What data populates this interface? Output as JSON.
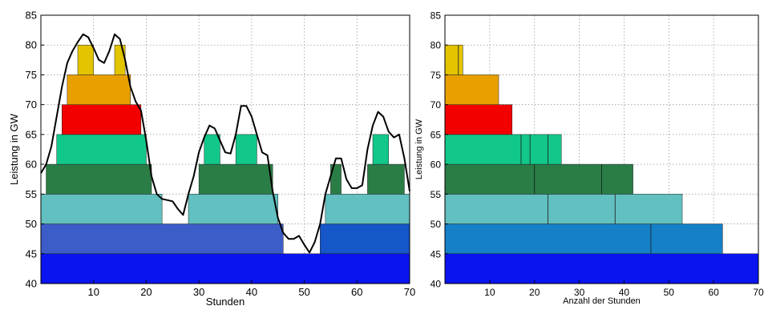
{
  "chart_data": [
    {
      "type": "area",
      "xlabel": "Stunden",
      "ylabel": "Leistung in GW",
      "xlim": [
        0,
        70
      ],
      "ylim": [
        40,
        85
      ],
      "xticks": [
        "10",
        "20",
        "30",
        "40",
        "50",
        "60",
        "70"
      ],
      "yticks": [
        "40",
        "45",
        "50",
        "55",
        "60",
        "65",
        "70",
        "75",
        "80",
        "85"
      ],
      "grid": true,
      "bands": [
        {
          "x0": 0,
          "x1": 70,
          "y0": 40,
          "y1": 45,
          "color": "#0a14f0"
        },
        {
          "x0": 0,
          "x1": 46,
          "y0": 45,
          "y1": 50,
          "color": "#3c5cc8"
        },
        {
          "x0": 53,
          "x1": 70,
          "y0": 45,
          "y1": 50,
          "color": "#1556c8"
        },
        {
          "x0": 0,
          "x1": 23,
          "y0": 50,
          "y1": 55,
          "color": "#62c0c0"
        },
        {
          "x0": 28,
          "x1": 45,
          "y0": 50,
          "y1": 55,
          "color": "#62c0c0"
        },
        {
          "x0": 54,
          "x1": 70,
          "y0": 50,
          "y1": 55,
          "color": "#62c0c0"
        },
        {
          "x0": 1,
          "x1": 21,
          "y0": 55,
          "y1": 60,
          "color": "#2a7d45"
        },
        {
          "x0": 30,
          "x1": 44,
          "y0": 55,
          "y1": 60,
          "color": "#2a7d45"
        },
        {
          "x0": 55,
          "x1": 57,
          "y0": 55,
          "y1": 60,
          "color": "#2a7d45"
        },
        {
          "x0": 62,
          "x1": 69,
          "y0": 55,
          "y1": 60,
          "color": "#2a7d45"
        },
        {
          "x0": 3,
          "x1": 20,
          "y0": 60,
          "y1": 65,
          "color": "#12c78a"
        },
        {
          "x0": 31,
          "x1": 34,
          "y0": 60,
          "y1": 65,
          "color": "#12c78a"
        },
        {
          "x0": 37,
          "x1": 41,
          "y0": 60,
          "y1": 65,
          "color": "#12c78a"
        },
        {
          "x0": 63,
          "x1": 66,
          "y0": 60,
          "y1": 65,
          "color": "#12c78a"
        },
        {
          "x0": 4,
          "x1": 19,
          "y0": 65,
          "y1": 70,
          "color": "#f20000"
        },
        {
          "x0": 5,
          "x1": 17,
          "y0": 70,
          "y1": 75,
          "color": "#e8a000"
        },
        {
          "x0": 7,
          "x1": 10,
          "y0": 75,
          "y1": 80,
          "color": "#e2c400"
        },
        {
          "x0": 14,
          "x1": 16,
          "y0": 75,
          "y1": 80,
          "color": "#e2c400"
        }
      ],
      "series": [
        {
          "x": [
            0,
            1,
            2,
            3,
            4,
            5,
            6,
            7,
            8,
            9,
            10,
            11,
            12,
            13,
            14,
            15,
            16,
            17,
            18,
            19,
            20,
            21,
            22,
            23,
            24,
            25,
            26,
            27,
            28,
            29,
            30,
            31,
            32,
            33,
            34,
            35,
            36,
            37,
            38,
            39,
            40,
            41,
            42,
            43,
            44,
            45,
            46,
            47,
            48,
            49,
            50,
            51,
            52,
            53,
            54,
            55,
            56,
            57,
            58,
            59,
            60,
            61,
            62,
            63,
            64,
            65,
            66,
            67,
            68,
            69,
            70
          ],
          "values": [
            58.5,
            60,
            63,
            68,
            73,
            77,
            79,
            80.5,
            81.8,
            81.3,
            79.5,
            77.5,
            77,
            79,
            81.8,
            81,
            77.5,
            73,
            70.5,
            69,
            64,
            58,
            55,
            54.2,
            54,
            53.8,
            52.5,
            51.5,
            55,
            58,
            62,
            64.5,
            66.5,
            66,
            64,
            62,
            61.8,
            65,
            69.8,
            69.8,
            68,
            65,
            62,
            61.5,
            55.5,
            51,
            48.5,
            47.5,
            47.5,
            48,
            46.5,
            45.2,
            47,
            50,
            55,
            58,
            61,
            61,
            57.5,
            56,
            56,
            56.5,
            62.5,
            66.5,
            68.8,
            68,
            65.5,
            64.5,
            65,
            61,
            55.5
          ]
        }
      ]
    },
    {
      "type": "bar",
      "xlabel": "Anzahl der Stunden",
      "ylabel": "Leistung in GW",
      "xlim": [
        0,
        70
      ],
      "ylim": [
        40,
        85
      ],
      "xticks": [
        "10",
        "20",
        "30",
        "40",
        "50",
        "60",
        "70"
      ],
      "yticks": [
        "40",
        "45",
        "50",
        "55",
        "60",
        "65",
        "70",
        "75",
        "80",
        "85"
      ],
      "grid": true,
      "bars": [
        {
          "y0": 40,
          "y1": 45,
          "x1": 70,
          "dividers": [],
          "color": "#0a14f0"
        },
        {
          "y0": 45,
          "y1": 50,
          "x1": 62,
          "dividers": [
            46
          ],
          "color": "#1580c8"
        },
        {
          "y0": 50,
          "y1": 55,
          "x1": 53,
          "dividers": [
            23,
            38
          ],
          "color": "#62c0c0"
        },
        {
          "y0": 55,
          "y1": 60,
          "x1": 42,
          "dividers": [
            20,
            35
          ],
          "color": "#2a7d45"
        },
        {
          "y0": 60,
          "y1": 65,
          "x1": 26,
          "dividers": [
            17,
            19,
            23
          ],
          "color": "#12c78a"
        },
        {
          "y0": 65,
          "y1": 70,
          "x1": 15,
          "dividers": [],
          "color": "#f20000"
        },
        {
          "y0": 70,
          "y1": 75,
          "x1": 12,
          "dividers": [],
          "color": "#e8a000"
        },
        {
          "y0": 75,
          "y1": 80,
          "x1": 4,
          "dividers": [
            3
          ],
          "color": "#e2c400"
        }
      ]
    }
  ]
}
